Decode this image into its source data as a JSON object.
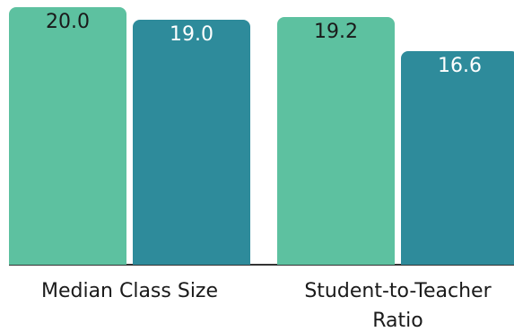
{
  "chart_data": {
    "type": "bar",
    "categories": [
      "Median Class Size",
      "Student-to-Teacher Ratio"
    ],
    "series": [
      {
        "color": "#5dc1a0",
        "label_color": "#1a1a1a",
        "values": [
          20.0,
          19.2
        ],
        "value_labels": [
          "20.0",
          "19.2"
        ]
      },
      {
        "color": "#2e8b9b",
        "label_color": "#ffffff",
        "values": [
          19.0,
          16.6
        ],
        "value_labels": [
          "19.0",
          "16.6"
        ]
      }
    ],
    "ylim": [
      0,
      20
    ]
  }
}
